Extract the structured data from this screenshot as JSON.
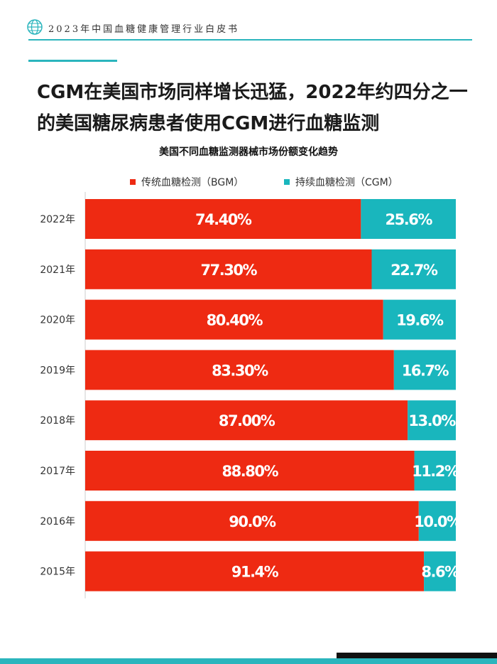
{
  "header": {
    "title": "2023年中国血糖健康管理行业白皮书",
    "accent_color": "#2bb5bd"
  },
  "headline": {
    "line1": "CGM在美国市场同样增长迅猛，2022年约四分之一",
    "line2": "的美国糖尿病患者使用CGM进行血糖监测"
  },
  "chart_data": {
    "type": "bar",
    "orientation": "horizontal",
    "stacked": true,
    "percent_stacked": true,
    "title": "美国不同血糖监测器械市场份额变化趋势",
    "categories": [
      "2022年",
      "2021年",
      "2020年",
      "2019年",
      "2018年",
      "2017年",
      "2016年",
      "2015年"
    ],
    "series": [
      {
        "name": "传统血糖检测（BGM）",
        "color": "#ee2a12",
        "values": [
          74.4,
          77.3,
          80.4,
          83.3,
          87.0,
          88.8,
          90.0,
          91.4
        ],
        "labels": [
          "74.40%",
          "77.30%",
          "80.40%",
          "83.30%",
          "87.00%",
          "88.80%",
          "90.0%",
          "91.4%"
        ]
      },
      {
        "name": "持续血糖检测（CGM）",
        "color": "#19b6bd",
        "values": [
          25.6,
          22.7,
          19.6,
          16.7,
          13.0,
          11.2,
          10.0,
          8.6
        ],
        "labels": [
          "25.6%",
          "22.7%",
          "19.6%",
          "16.7%",
          "13.0%",
          "11.2%",
          "10.0%",
          "8.6%"
        ]
      }
    ],
    "xlim": [
      0,
      100
    ],
    "legend": "top-center",
    "grid": false
  }
}
